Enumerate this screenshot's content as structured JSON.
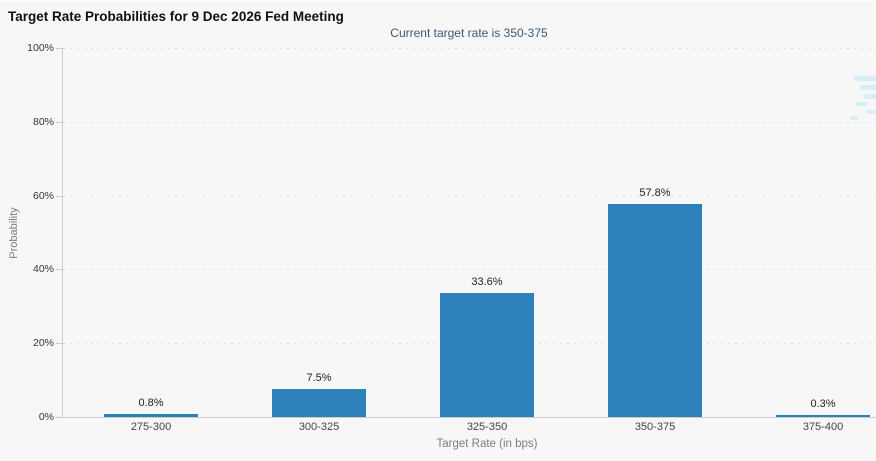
{
  "header": {
    "title": "Target Rate Probabilities for 9 Dec 2026 Fed Meeting",
    "subtitle": "Current target rate is 350-375"
  },
  "chart_data": {
    "type": "bar",
    "title": "Target Rate Probabilities for 9 Dec 2026 Fed Meeting",
    "subtitle": "Current target rate is 350-375",
    "categories": [
      "275-300",
      "300-325",
      "325-350",
      "350-375",
      "375-400"
    ],
    "values": [
      0.8,
      7.5,
      33.6,
      57.8,
      0.3
    ],
    "value_labels": [
      "0.8%",
      "7.5%",
      "33.6%",
      "57.8%",
      "0.3%"
    ],
    "xlabel": "Target Rate (in bps)",
    "ylabel": "Probability",
    "ylim": [
      0,
      100
    ],
    "yticks": [
      0,
      20,
      40,
      60,
      80,
      100
    ],
    "ytick_labels": [
      "0%",
      "20%",
      "40%",
      "60%",
      "80%",
      "100%"
    ],
    "grid": "horizontal dotted",
    "legend": "none"
  },
  "colors": {
    "background": "#f7f7f7",
    "bar": "#2c81ba",
    "title": "#111111",
    "subtitle": "#3d5a73",
    "tick_label": "#333333",
    "category_label": "#444444",
    "value_label": "#222222",
    "axis_title": "#7d7d7d",
    "axis_line": "#cccccc",
    "gridline": "#dcdcdc",
    "watermark": "#d7edf8"
  }
}
